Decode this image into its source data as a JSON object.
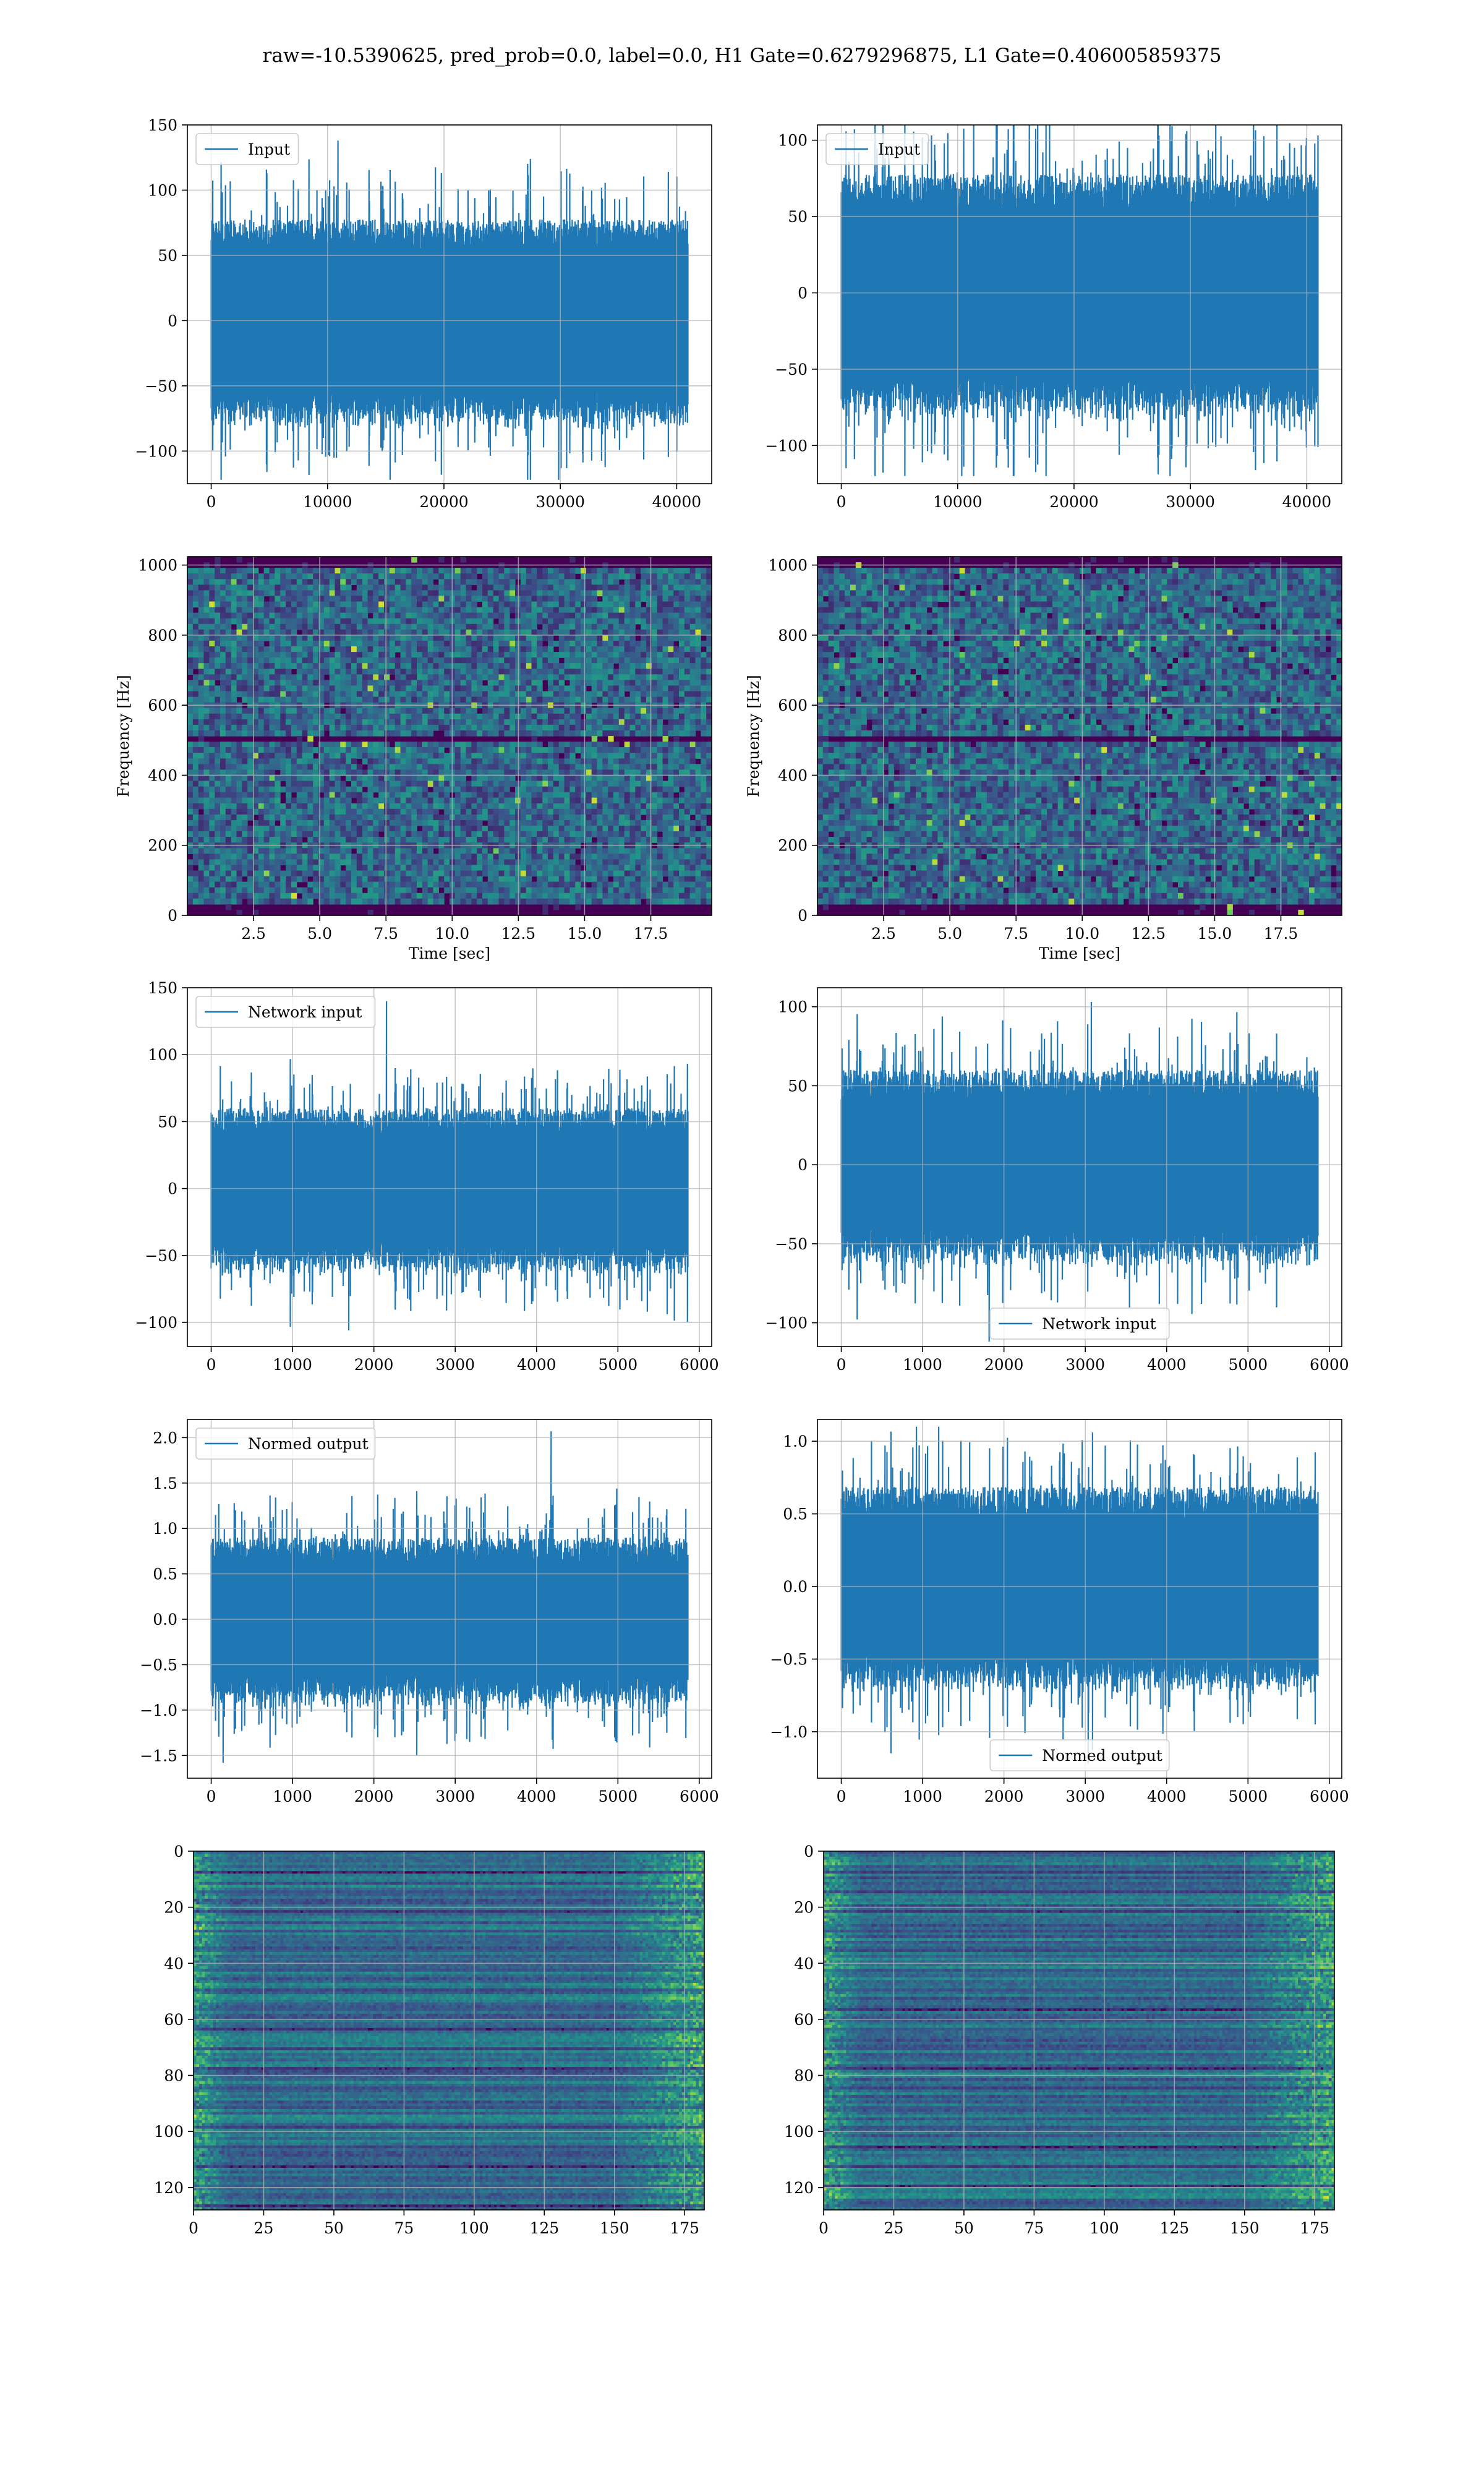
{
  "suptitle": "raw=-10.5390625, pred_prob=0.0, label=0.0, H1 Gate=0.6279296875, L1 Gate=0.406005859375",
  "colors": {
    "series": "#1f77b4",
    "grid": "#b0b0b0",
    "viridis_low": "#440154",
    "viridis_mid": "#3b528b",
    "viridis_green": "#21918c",
    "viridis_high": "#5ec962",
    "viridis_top": "#fde725"
  },
  "chart_data": [
    {
      "id": "h1-input",
      "type": "line",
      "legend": "Input",
      "legend_loc": "upper left",
      "x_range": [
        0,
        40960
      ],
      "xlim": [
        -2048,
        43008
      ],
      "ylim": [
        -125,
        150
      ],
      "xticks": [
        0,
        10000,
        20000,
        30000,
        40000
      ],
      "yticks": [
        -100,
        -50,
        0,
        50,
        100,
        150
      ],
      "xlabel": "",
      "ylabel": "",
      "envelope": {
        "core": 62,
        "peak_max": 138,
        "peak_min": -122
      },
      "grid": true
    },
    {
      "id": "l1-input",
      "type": "line",
      "legend": "Input",
      "legend_loc": "upper left",
      "x_range": [
        0,
        40960
      ],
      "xlim": [
        -2048,
        43008
      ],
      "ylim": [
        -125,
        110
      ],
      "xticks": [
        0,
        10000,
        20000,
        30000,
        40000
      ],
      "yticks": [
        -100,
        -50,
        0,
        50,
        100
      ],
      "xlabel": "",
      "ylabel": "",
      "envelope": {
        "core": 62,
        "peak_max": 110,
        "peak_min": -120
      },
      "grid": true
    },
    {
      "id": "h1-spectrogram",
      "type": "heatmap",
      "xlim": [
        0,
        19.8
      ],
      "ylim": [
        0,
        1024
      ],
      "xticks": [
        2.5,
        5.0,
        7.5,
        10.0,
        12.5,
        15.0,
        17.5
      ],
      "yticks": [
        0,
        200,
        400,
        600,
        800,
        1000
      ],
      "xlabel": "Time [sec]",
      "ylabel": "Frequency [Hz]",
      "dark_bands_hz": [
        15,
        505,
        1010
      ],
      "colormap": "viridis",
      "grid": true
    },
    {
      "id": "l1-spectrogram",
      "type": "heatmap",
      "xlim": [
        0,
        19.8
      ],
      "ylim": [
        0,
        1024
      ],
      "xticks": [
        2.5,
        5.0,
        7.5,
        10.0,
        12.5,
        15.0,
        17.5
      ],
      "yticks": [
        0,
        200,
        400,
        600,
        800,
        1000
      ],
      "xlabel": "Time [sec]",
      "ylabel": "Frequency [Hz]",
      "dark_bands_hz": [
        15,
        505,
        1010
      ],
      "colormap": "viridis",
      "grid": true
    },
    {
      "id": "h1-network-input",
      "type": "line",
      "legend": "Network input",
      "legend_loc": "upper left",
      "x_range": [
        0,
        5860
      ],
      "xlim": [
        -293,
        6153
      ],
      "ylim": [
        -118,
        150
      ],
      "xticks": [
        0,
        1000,
        2000,
        3000,
        4000,
        5000,
        6000
      ],
      "yticks": [
        -100,
        -50,
        0,
        50,
        100,
        150
      ],
      "xlabel": "",
      "ylabel": "",
      "envelope": {
        "core": 48,
        "peak_max": 140,
        "peak_min": -106
      },
      "grid": true
    },
    {
      "id": "l1-network-input",
      "type": "line",
      "legend": "Network input",
      "legend_loc": "lower center",
      "x_range": [
        0,
        5860
      ],
      "xlim": [
        -293,
        6153
      ],
      "ylim": [
        -115,
        112
      ],
      "xticks": [
        0,
        1000,
        2000,
        3000,
        4000,
        5000,
        6000
      ],
      "yticks": [
        -100,
        -50,
        0,
        50,
        100
      ],
      "xlabel": "",
      "ylabel": "",
      "envelope": {
        "core": 48,
        "peak_max": 103,
        "peak_min": -112
      },
      "grid": true
    },
    {
      "id": "h1-normed-output",
      "type": "line",
      "legend": "Normed output",
      "legend_loc": "upper left",
      "x_range": [
        0,
        5860
      ],
      "xlim": [
        -293,
        6153
      ],
      "ylim": [
        -1.75,
        2.2
      ],
      "xticks": [
        0,
        1000,
        2000,
        3000,
        4000,
        5000,
        6000
      ],
      "yticks": [
        -1.5,
        -1.0,
        -0.5,
        0.0,
        0.5,
        1.0,
        1.5,
        2.0
      ],
      "xlabel": "",
      "ylabel": "",
      "envelope": {
        "core": 0.72,
        "peak_max": 2.07,
        "peak_min": -1.58
      },
      "grid": true
    },
    {
      "id": "l1-normed-output",
      "type": "line",
      "legend": "Normed output",
      "legend_loc": "lower center",
      "x_range": [
        0,
        5860
      ],
      "xlim": [
        -293,
        6153
      ],
      "ylim": [
        -1.32,
        1.15
      ],
      "xticks": [
        0,
        1000,
        2000,
        3000,
        4000,
        5000,
        6000
      ],
      "yticks": [
        -1.0,
        -0.5,
        0.0,
        0.5,
        1.0
      ],
      "xlabel": "",
      "ylabel": "",
      "envelope": {
        "core": 0.55,
        "peak_max": 1.1,
        "peak_min": -1.22
      },
      "grid": true
    },
    {
      "id": "h1-feature-map",
      "type": "heatmap",
      "xlim": [
        0,
        182
      ],
      "ylim": [
        128,
        0
      ],
      "xticks": [
        0,
        25,
        50,
        75,
        100,
        125,
        150,
        175
      ],
      "yticks": [
        0,
        20,
        40,
        60,
        80,
        100,
        120
      ],
      "xlabel": "",
      "ylabel": "",
      "colormap": "viridis",
      "grid": true
    },
    {
      "id": "l1-feature-map",
      "type": "heatmap",
      "xlim": [
        0,
        182
      ],
      "ylim": [
        128,
        0
      ],
      "xticks": [
        0,
        25,
        50,
        75,
        100,
        125,
        150,
        175
      ],
      "yticks": [
        0,
        20,
        40,
        60,
        80,
        100,
        120
      ],
      "xlabel": "",
      "ylabel": "",
      "colormap": "viridis",
      "grid": true
    }
  ]
}
